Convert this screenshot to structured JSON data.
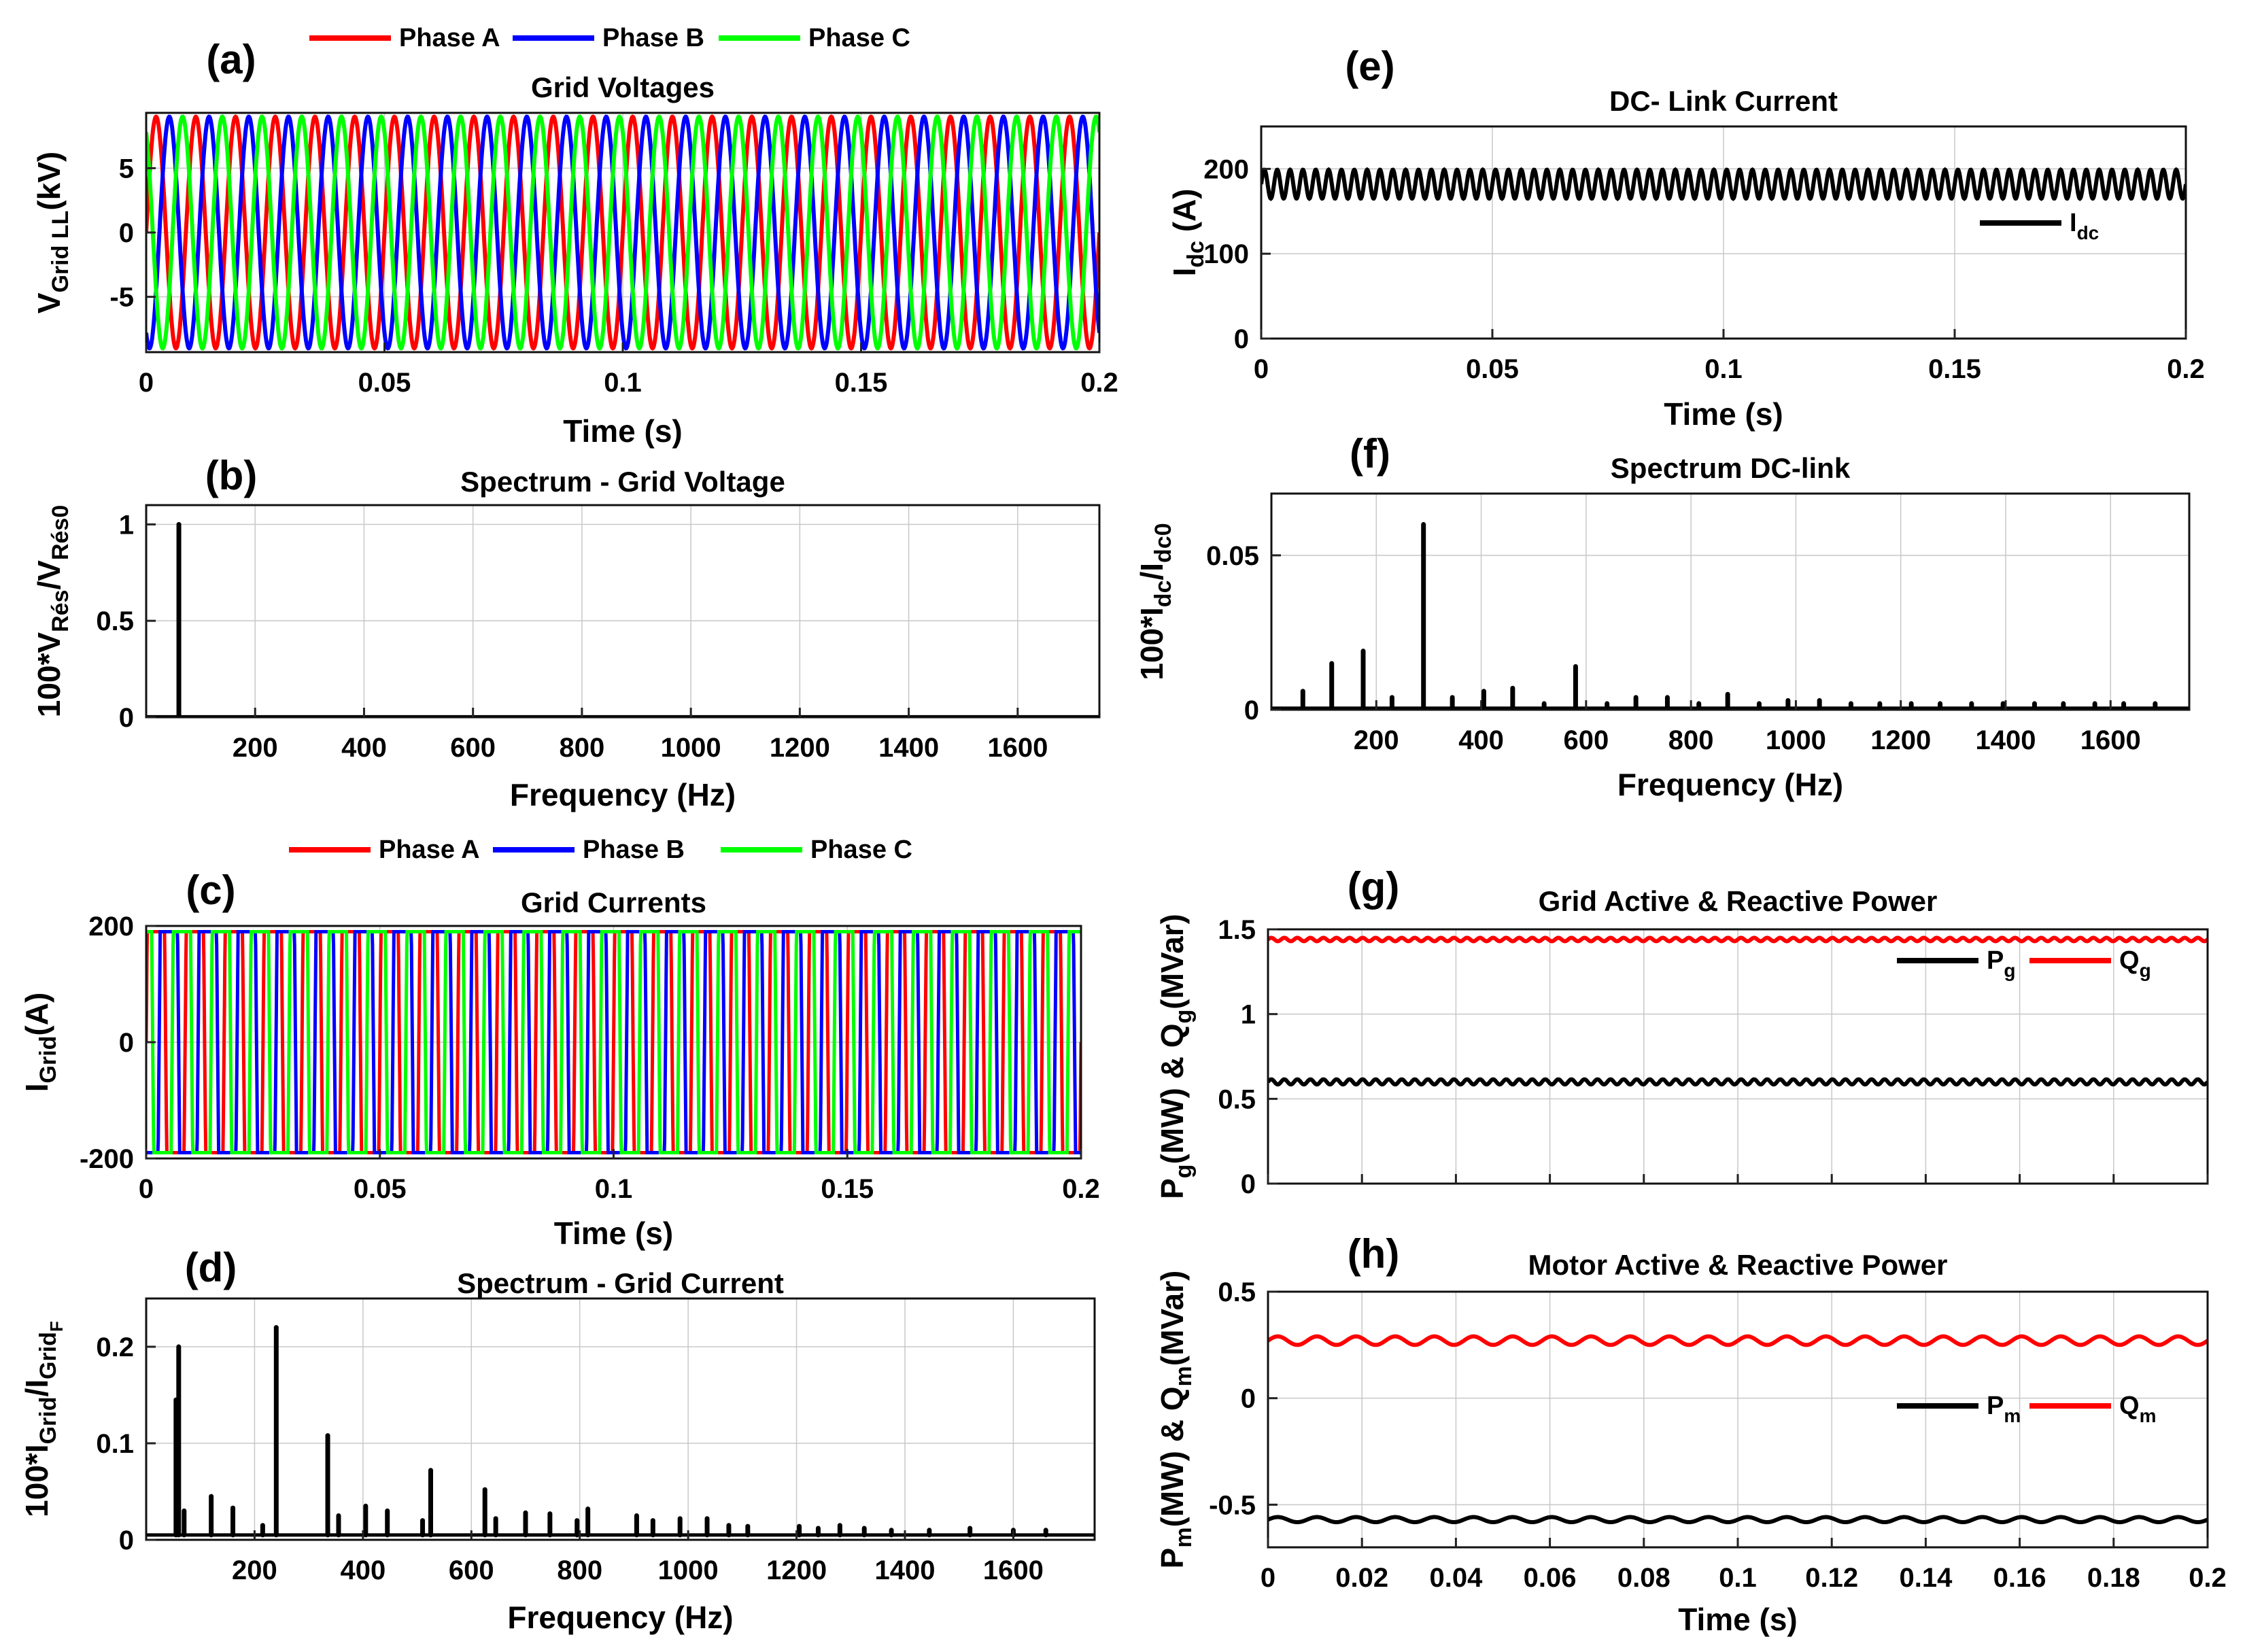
{
  "figure_title": "Grid and DC-link waveforms with harmonic spectra",
  "colors": {
    "phase_a": "#ff0000",
    "phase_b": "#0000ff",
    "phase_c": "#00ff00",
    "black": "#000000",
    "red": "#ff0000"
  },
  "chart_data": [
    {
      "id": "a",
      "type": "line",
      "panel_label": "(a)",
      "title": "Grid Voltages",
      "xlabel": "Time (s)",
      "ylabel_main": "V",
      "ylabel_sub": "Grid LL",
      "ylabel_tail": "(kV)",
      "xlim": [
        0,
        0.2
      ],
      "ylim": [
        -9.3,
        9.3
      ],
      "xticks": [
        0,
        0.05,
        0.1,
        0.15,
        0.2
      ],
      "xtick_labels": [
        "0",
        "0.05",
        "0.1",
        "0.15",
        "0.2"
      ],
      "yticks": [
        -5,
        0,
        5
      ],
      "ytick_labels": [
        "-5",
        "0",
        "5"
      ],
      "legend": [
        "Phase A",
        "Phase B",
        "Phase C"
      ],
      "legend_colors": [
        "#ff0000",
        "#0000ff",
        "#00ff00"
      ],
      "series": [
        {
          "name": "Phase A",
          "color": "#ff0000",
          "amplitude": 9,
          "frequency_hz": 120,
          "phase_deg": 0
        },
        {
          "name": "Phase B",
          "color": "#0000ff",
          "amplitude": 9,
          "frequency_hz": 120,
          "phase_deg": -120
        },
        {
          "name": "Phase C",
          "color": "#00ff00",
          "amplitude": 9,
          "frequency_hz": 120,
          "phase_deg": 120
        }
      ]
    },
    {
      "id": "b",
      "type": "line",
      "panel_label": "(b)",
      "title": "Spectrum - Grid Voltage",
      "xlabel": "Frequency (Hz)",
      "ylabel_main": "100*V",
      "ylabel_sub": "Rés",
      "ylabel_tail": "/V",
      "ylabel_sub2": "Rés0",
      "xlim": [
        0,
        1750
      ],
      "ylim": [
        0,
        1.1
      ],
      "xticks": [
        200,
        400,
        600,
        800,
        1000,
        1200,
        1400,
        1600
      ],
      "xtick_labels": [
        "200",
        "400",
        "600",
        "800",
        "1000",
        "1200",
        "1400",
        "1600"
      ],
      "yticks": [
        0,
        0.5,
        1
      ],
      "ytick_labels": [
        "0",
        "0.5",
        "1"
      ],
      "baseline": 0.002,
      "peaks": [
        {
          "f": 60,
          "v": 1.0
        }
      ]
    },
    {
      "id": "c",
      "type": "line",
      "panel_label": "(c)",
      "title": "Grid Currents",
      "xlabel": "Time (s)",
      "ylabel_main": "I",
      "ylabel_sub": "Grid",
      "ylabel_tail": "(A)",
      "xlim": [
        0,
        0.2
      ],
      "ylim": [
        -200,
        200
      ],
      "xticks": [
        0,
        0.05,
        0.1,
        0.15,
        0.2
      ],
      "xtick_labels": [
        "0",
        "0.05",
        "0.1",
        "0.15",
        "0.2"
      ],
      "yticks": [
        -200,
        0,
        200
      ],
      "ytick_labels": [
        "-200",
        "0",
        "200"
      ],
      "legend": [
        "Phase A",
        "Phase B",
        "Phase C"
      ],
      "legend_colors": [
        "#ff0000",
        "#0000ff",
        "#00ff00"
      ],
      "series": [
        {
          "name": "Phase A",
          "color": "#ff0000",
          "amplitude": 190,
          "frequency_hz": 120,
          "phase_deg": 0
        },
        {
          "name": "Phase B",
          "color": "#0000ff",
          "amplitude": 190,
          "frequency_hz": 120,
          "phase_deg": -120
        },
        {
          "name": "Phase C",
          "color": "#00ff00",
          "amplitude": 190,
          "frequency_hz": 120,
          "phase_deg": 120
        }
      ]
    },
    {
      "id": "d",
      "type": "line",
      "panel_label": "(d)",
      "title": "Spectrum - Grid Current",
      "xlabel": "Frequency (Hz)",
      "ylabel_main": "100*I",
      "ylabel_sub": "Grid",
      "ylabel_tail": "/I",
      "ylabel_sub2": "Grid",
      "ylabel_sub3": "F",
      "xlim": [
        0,
        1750
      ],
      "ylim": [
        0,
        0.25
      ],
      "xticks": [
        200,
        400,
        600,
        800,
        1000,
        1200,
        1400,
        1600
      ],
      "xtick_labels": [
        "200",
        "400",
        "600",
        "800",
        "1000",
        "1200",
        "1400",
        "1600"
      ],
      "yticks": [
        0,
        0.1,
        0.2
      ],
      "ytick_labels": [
        "0",
        "0.1",
        "0.2"
      ],
      "baseline": 0.005,
      "peaks": [
        {
          "f": 55,
          "v": 0.145
        },
        {
          "f": 60,
          "v": 0.2
        },
        {
          "f": 70,
          "v": 0.03
        },
        {
          "f": 120,
          "v": 0.045
        },
        {
          "f": 160,
          "v": 0.033
        },
        {
          "f": 215,
          "v": 0.015
        },
        {
          "f": 240,
          "v": 0.22
        },
        {
          "f": 335,
          "v": 0.108
        },
        {
          "f": 355,
          "v": 0.025
        },
        {
          "f": 405,
          "v": 0.035
        },
        {
          "f": 445,
          "v": 0.03
        },
        {
          "f": 510,
          "v": 0.02
        },
        {
          "f": 525,
          "v": 0.072
        },
        {
          "f": 625,
          "v": 0.052
        },
        {
          "f": 645,
          "v": 0.022
        },
        {
          "f": 700,
          "v": 0.028
        },
        {
          "f": 745,
          "v": 0.027
        },
        {
          "f": 795,
          "v": 0.02
        },
        {
          "f": 815,
          "v": 0.032
        },
        {
          "f": 905,
          "v": 0.025
        },
        {
          "f": 935,
          "v": 0.02
        },
        {
          "f": 985,
          "v": 0.022
        },
        {
          "f": 1035,
          "v": 0.022
        },
        {
          "f": 1075,
          "v": 0.015
        },
        {
          "f": 1110,
          "v": 0.014
        },
        {
          "f": 1205,
          "v": 0.014
        },
        {
          "f": 1240,
          "v": 0.012
        },
        {
          "f": 1280,
          "v": 0.015
        },
        {
          "f": 1325,
          "v": 0.012
        },
        {
          "f": 1375,
          "v": 0.01
        },
        {
          "f": 1445,
          "v": 0.01
        },
        {
          "f": 1520,
          "v": 0.012
        },
        {
          "f": 1600,
          "v": 0.01
        },
        {
          "f": 1660,
          "v": 0.01
        }
      ]
    },
    {
      "id": "e",
      "type": "line",
      "panel_label": "(e)",
      "title": "DC- Link Current",
      "xlabel": "Time (s)",
      "ylabel_main": "I",
      "ylabel_sub": "dc",
      "ylabel_tail": " (A)",
      "xlim": [
        0,
        0.2
      ],
      "ylim": [
        0,
        250
      ],
      "xticks": [
        0,
        0.05,
        0.1,
        0.15,
        0.2
      ],
      "xtick_labels": [
        "0",
        "0.05",
        "0.1",
        "0.15",
        "0.2"
      ],
      "yticks": [
        0,
        100,
        200
      ],
      "ytick_labels": [
        "0",
        "100",
        "200"
      ],
      "legend": [
        "I"
      ],
      "legend_sub": [
        "dc"
      ],
      "legend_colors": [
        "#000000"
      ],
      "series": [
        {
          "name": "Idc",
          "color": "#000000",
          "mean": 182,
          "ripple_amplitude": 17,
          "ripple_hz": 360
        }
      ]
    },
    {
      "id": "f",
      "type": "line",
      "panel_label": "(f)",
      "title": "Spectrum DC-link",
      "xlabel": "Frequency (Hz)",
      "ylabel_main": "100*I",
      "ylabel_sub": "dc",
      "ylabel_tail": "/I",
      "ylabel_sub2": "dc0",
      "xlim": [
        0,
        1750
      ],
      "ylim": [
        0,
        0.07
      ],
      "xticks": [
        200,
        400,
        600,
        800,
        1000,
        1200,
        1400,
        1600
      ],
      "xtick_labels": [
        "200",
        "400",
        "600",
        "800",
        "1000",
        "1200",
        "1400",
        "1600"
      ],
      "yticks": [
        0,
        0.05
      ],
      "ytick_labels": [
        "0",
        "0.05"
      ],
      "baseline": 0.0005,
      "peaks": [
        {
          "f": 60,
          "v": 0.006
        },
        {
          "f": 115,
          "v": 0.015
        },
        {
          "f": 175,
          "v": 0.019
        },
        {
          "f": 230,
          "v": 0.004
        },
        {
          "f": 290,
          "v": 0.06
        },
        {
          "f": 345,
          "v": 0.004
        },
        {
          "f": 405,
          "v": 0.006
        },
        {
          "f": 460,
          "v": 0.007
        },
        {
          "f": 520,
          "v": 0.002
        },
        {
          "f": 580,
          "v": 0.014
        },
        {
          "f": 640,
          "v": 0.002
        },
        {
          "f": 695,
          "v": 0.004
        },
        {
          "f": 755,
          "v": 0.004
        },
        {
          "f": 815,
          "v": 0.002
        },
        {
          "f": 870,
          "v": 0.005
        },
        {
          "f": 930,
          "v": 0.002
        },
        {
          "f": 985,
          "v": 0.003
        },
        {
          "f": 1045,
          "v": 0.003
        },
        {
          "f": 1105,
          "v": 0.002
        },
        {
          "f": 1160,
          "v": 0.002
        },
        {
          "f": 1220,
          "v": 0.002
        },
        {
          "f": 1275,
          "v": 0.002
        },
        {
          "f": 1335,
          "v": 0.002
        },
        {
          "f": 1395,
          "v": 0.002
        },
        {
          "f": 1455,
          "v": 0.002
        },
        {
          "f": 1510,
          "v": 0.002
        },
        {
          "f": 1570,
          "v": 0.002
        },
        {
          "f": 1625,
          "v": 0.002
        },
        {
          "f": 1685,
          "v": 0.002
        }
      ]
    },
    {
      "id": "g",
      "type": "line",
      "panel_label": "(g)",
      "title": "Grid Active & Reactive Power",
      "xlabel": "",
      "ylabel_main": "P",
      "ylabel_sub": "g",
      "ylabel_tail": "(MW) & Q",
      "ylabel_sub2": "g",
      "ylabel_tail2": "(MVar)",
      "xlim": [
        0,
        0.2
      ],
      "ylim": [
        0,
        1.5
      ],
      "xticks": [
        0,
        0.02,
        0.04,
        0.06,
        0.08,
        0.1,
        0.12,
        0.14,
        0.16,
        0.18,
        0.2
      ],
      "xtick_labels": [],
      "yticks": [
        0,
        0.5,
        1,
        1.5
      ],
      "ytick_labels": [
        "0",
        "0.5",
        "1",
        "1.5"
      ],
      "legend": [
        "P",
        "Q"
      ],
      "legend_sub": [
        "g",
        "g"
      ],
      "legend_colors": [
        "#000000",
        "#ff0000"
      ],
      "series": [
        {
          "name": "Pg",
          "color": "#000000",
          "mean": 0.6,
          "ripple_amplitude": 0.015,
          "ripple_hz": 360
        },
        {
          "name": "Qg",
          "color": "#ff0000",
          "mean": 1.44,
          "ripple_amplitude": 0.01,
          "ripple_hz": 360
        }
      ]
    },
    {
      "id": "h",
      "type": "line",
      "panel_label": "(h)",
      "title": "Motor Active & Reactive Power",
      "xlabel": "Time (s)",
      "ylabel_main": "P",
      "ylabel_sub": "m",
      "ylabel_tail": "(MW) & Q",
      "ylabel_sub2": "m",
      "ylabel_tail2": "(MVar)",
      "xlim": [
        0,
        0.2
      ],
      "ylim": [
        -0.7,
        0.5
      ],
      "xticks": [
        0,
        0.02,
        0.04,
        0.06,
        0.08,
        0.1,
        0.12,
        0.14,
        0.16,
        0.18,
        0.2
      ],
      "xtick_labels": [
        "0",
        "0.02",
        "0.04",
        "0.06",
        "0.08",
        "0.1",
        "0.12",
        "0.14",
        "0.16",
        "0.18",
        "0.2"
      ],
      "yticks": [
        -0.5,
        0,
        0.5
      ],
      "ytick_labels": [
        "-0.5",
        "0",
        "0.5"
      ],
      "legend": [
        "P",
        "Q"
      ],
      "legend_sub": [
        "m",
        "m"
      ],
      "legend_colors": [
        "#000000",
        "#ff0000"
      ],
      "series": [
        {
          "name": "Pm",
          "color": "#000000",
          "mean": -0.57,
          "ripple_amplitude": 0.012,
          "ripple_hz": 120
        },
        {
          "name": "Qm",
          "color": "#ff0000",
          "mean": 0.27,
          "ripple_amplitude": 0.02,
          "ripple_hz": 120
        }
      ]
    }
  ]
}
